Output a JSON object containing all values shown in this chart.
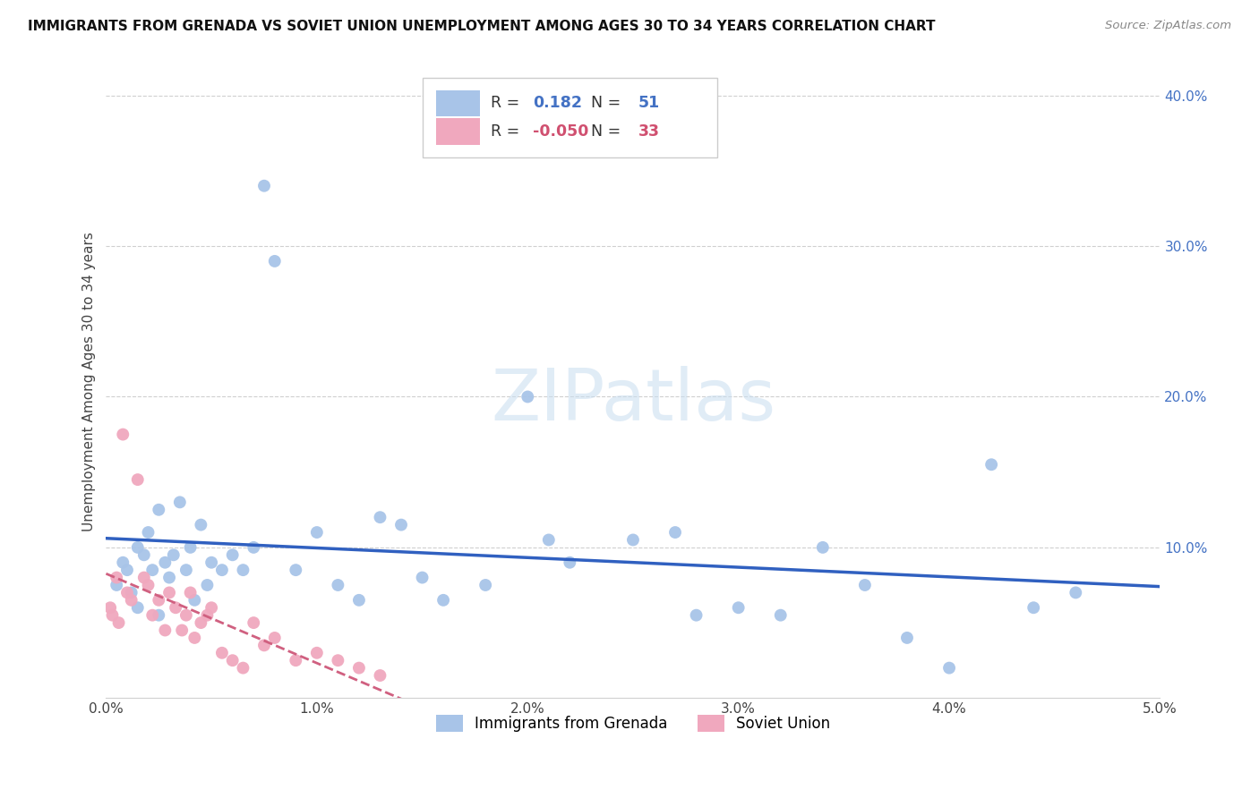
{
  "title": "IMMIGRANTS FROM GRENADA VS SOVIET UNION UNEMPLOYMENT AMONG AGES 30 TO 34 YEARS CORRELATION CHART",
  "source": "Source: ZipAtlas.com",
  "ylabel": "Unemployment Among Ages 30 to 34 years",
  "x_min": 0.0,
  "x_max": 0.05,
  "y_min": 0.0,
  "y_max": 0.42,
  "x_ticks": [
    0.0,
    0.01,
    0.02,
    0.03,
    0.04,
    0.05
  ],
  "x_tick_labels": [
    "0.0%",
    "1.0%",
    "2.0%",
    "3.0%",
    "4.0%",
    "5.0%"
  ],
  "y_ticks": [
    0.0,
    0.1,
    0.2,
    0.3,
    0.4
  ],
  "y_tick_labels": [
    "",
    "10.0%",
    "20.0%",
    "30.0%",
    "40.0%"
  ],
  "grenada_R": 0.182,
  "grenada_N": 51,
  "soviet_R": -0.05,
  "soviet_N": 33,
  "grenada_color": "#a8c4e8",
  "soviet_color": "#f0a8be",
  "grenada_line_color": "#3060c0",
  "soviet_line_color": "#d06080",
  "background_color": "#ffffff",
  "grid_color": "#d0d0d0",
  "watermark": "ZIPatlas",
  "grenada_points_x": [
    0.0005,
    0.0008,
    0.001,
    0.0012,
    0.0015,
    0.0015,
    0.0018,
    0.002,
    0.0022,
    0.0025,
    0.0025,
    0.0028,
    0.003,
    0.0032,
    0.0035,
    0.0038,
    0.004,
    0.0042,
    0.0045,
    0.0048,
    0.005,
    0.0055,
    0.006,
    0.0065,
    0.007,
    0.0075,
    0.008,
    0.009,
    0.01,
    0.011,
    0.012,
    0.013,
    0.014,
    0.015,
    0.016,
    0.018,
    0.02,
    0.021,
    0.022,
    0.025,
    0.027,
    0.028,
    0.03,
    0.032,
    0.034,
    0.036,
    0.038,
    0.04,
    0.042,
    0.044,
    0.046
  ],
  "grenada_points_y": [
    0.075,
    0.09,
    0.085,
    0.07,
    0.1,
    0.06,
    0.095,
    0.11,
    0.085,
    0.125,
    0.055,
    0.09,
    0.08,
    0.095,
    0.13,
    0.085,
    0.1,
    0.065,
    0.115,
    0.075,
    0.09,
    0.085,
    0.095,
    0.085,
    0.1,
    0.34,
    0.29,
    0.085,
    0.11,
    0.075,
    0.065,
    0.12,
    0.115,
    0.08,
    0.065,
    0.075,
    0.2,
    0.105,
    0.09,
    0.105,
    0.11,
    0.055,
    0.06,
    0.055,
    0.1,
    0.075,
    0.04,
    0.02,
    0.155,
    0.06,
    0.07
  ],
  "soviet_points_x": [
    0.0002,
    0.0003,
    0.0005,
    0.0006,
    0.0008,
    0.001,
    0.0012,
    0.0015,
    0.0018,
    0.002,
    0.0022,
    0.0025,
    0.0028,
    0.003,
    0.0033,
    0.0036,
    0.0038,
    0.004,
    0.0042,
    0.0045,
    0.0048,
    0.005,
    0.0055,
    0.006,
    0.0065,
    0.007,
    0.0075,
    0.008,
    0.009,
    0.01,
    0.011,
    0.012,
    0.013
  ],
  "soviet_points_y": [
    0.06,
    0.055,
    0.08,
    0.05,
    0.175,
    0.07,
    0.065,
    0.145,
    0.08,
    0.075,
    0.055,
    0.065,
    0.045,
    0.07,
    0.06,
    0.045,
    0.055,
    0.07,
    0.04,
    0.05,
    0.055,
    0.06,
    0.03,
    0.025,
    0.02,
    0.05,
    0.035,
    0.04,
    0.025,
    0.03,
    0.025,
    0.02,
    0.015
  ]
}
